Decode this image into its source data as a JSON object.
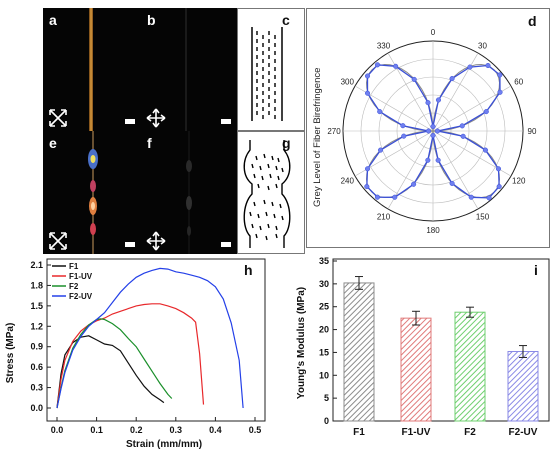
{
  "panels": {
    "a": "a",
    "b": "b",
    "c": "c",
    "d": "d",
    "e": "e",
    "f": "f",
    "g": "g",
    "h": "h",
    "i": "i"
  },
  "polar": {
    "ylabel": "Grey Level of Fiber Birefringence",
    "angle_labels": [
      "0",
      "30",
      "60",
      "90",
      "120",
      "150",
      "180",
      "210",
      "240",
      "270",
      "300",
      "330"
    ],
    "series_color": "#3a4fd6",
    "fit_color": "#8a8a8a"
  },
  "stress_strain": {
    "xlabel": "Strain (mm/mm)",
    "ylabel": "Stress (MPa)",
    "xticks": [
      "0.0",
      "0.1",
      "0.2",
      "0.3",
      "0.4",
      "0.5"
    ],
    "yticks": [
      "0.0",
      "0.3",
      "0.6",
      "0.9",
      "1.2",
      "1.5",
      "1.8",
      "2.1"
    ],
    "legend": [
      {
        "label": "F1",
        "color": "#111111"
      },
      {
        "label": "F1-UV",
        "color": "#e8282b"
      },
      {
        "label": "F2",
        "color": "#1a8f2a"
      },
      {
        "label": "F2-UV",
        "color": "#2440e8"
      }
    ]
  },
  "modulus": {
    "ylabel": "Young's Modulus (MPa)",
    "yticks": [
      "0",
      "5",
      "10",
      "15",
      "20",
      "25",
      "30",
      "35"
    ],
    "bars": [
      {
        "label": "F1",
        "color": "#8c8c8c"
      },
      {
        "label": "F1-UV",
        "color": "#e07a7a"
      },
      {
        "label": "F2",
        "color": "#6fcf6f"
      },
      {
        "label": "F2-UV",
        "color": "#8a8ae6"
      }
    ]
  },
  "chart_data": [
    {
      "type": "line",
      "chart": "polar",
      "angles": [
        0,
        10,
        20,
        30,
        40,
        50,
        60,
        70,
        80,
        90,
        100,
        110,
        120,
        130,
        140,
        150,
        160,
        170,
        180,
        190,
        200,
        210,
        220,
        230,
        240,
        250,
        260,
        270,
        280,
        290,
        300,
        310,
        320,
        330,
        340,
        350
      ],
      "values": [
        0.05,
        0.35,
        0.62,
        0.82,
        0.95,
        0.97,
        0.86,
        0.63,
        0.33,
        0.05,
        0.34,
        0.62,
        0.84,
        0.96,
        0.97,
        0.85,
        0.62,
        0.33,
        0.05,
        0.33,
        0.63,
        0.85,
        0.96,
        0.96,
        0.84,
        0.62,
        0.33,
        0.05,
        0.34,
        0.63,
        0.84,
        0.95,
        0.96,
        0.83,
        0.61,
        0.32
      ]
    },
    {
      "type": "line",
      "chart": "stress-strain",
      "xlim": [
        0,
        0.5
      ],
      "ylim": [
        0,
        2.1
      ],
      "series": [
        {
          "name": "F1",
          "x": [
            0,
            0.01,
            0.02,
            0.04,
            0.06,
            0.08,
            0.1,
            0.12,
            0.14,
            0.16,
            0.18,
            0.2,
            0.22,
            0.24,
            0.26,
            0.27
          ],
          "y": [
            0,
            0.5,
            0.78,
            0.96,
            1.04,
            1.06,
            1.0,
            0.94,
            0.92,
            0.84,
            0.66,
            0.48,
            0.32,
            0.2,
            0.12,
            0.08
          ]
        },
        {
          "name": "F1-UV",
          "x": [
            0,
            0.01,
            0.02,
            0.04,
            0.06,
            0.08,
            0.1,
            0.12,
            0.14,
            0.16,
            0.18,
            0.2,
            0.22,
            0.24,
            0.26,
            0.28,
            0.3,
            0.32,
            0.34,
            0.35,
            0.36,
            0.37
          ],
          "y": [
            0,
            0.42,
            0.7,
            0.98,
            1.13,
            1.22,
            1.28,
            1.32,
            1.38,
            1.42,
            1.46,
            1.5,
            1.52,
            1.53,
            1.53,
            1.5,
            1.46,
            1.4,
            1.32,
            1.26,
            0.8,
            0.05
          ]
        },
        {
          "name": "F2",
          "x": [
            0,
            0.01,
            0.02,
            0.04,
            0.06,
            0.08,
            0.1,
            0.11,
            0.12,
            0.14,
            0.16,
            0.18,
            0.2,
            0.22,
            0.24,
            0.26,
            0.28,
            0.29
          ],
          "y": [
            0,
            0.3,
            0.55,
            0.88,
            1.08,
            1.22,
            1.3,
            1.31,
            1.3,
            1.24,
            1.15,
            1.02,
            0.9,
            0.72,
            0.54,
            0.36,
            0.2,
            0.14
          ]
        },
        {
          "name": "F2-UV",
          "x": [
            0,
            0.01,
            0.02,
            0.04,
            0.06,
            0.08,
            0.1,
            0.12,
            0.14,
            0.16,
            0.18,
            0.2,
            0.22,
            0.24,
            0.26,
            0.28,
            0.3,
            0.32,
            0.34,
            0.36,
            0.38,
            0.4,
            0.42,
            0.44,
            0.46,
            0.47
          ],
          "y": [
            0,
            0.28,
            0.52,
            0.85,
            1.05,
            1.2,
            1.3,
            1.4,
            1.55,
            1.7,
            1.82,
            1.92,
            1.98,
            2.02,
            2.05,
            2.04,
            2.0,
            1.98,
            1.95,
            1.92,
            1.87,
            1.78,
            1.6,
            1.25,
            0.7,
            0.0
          ]
        }
      ]
    },
    {
      "type": "bar",
      "chart": "modulus",
      "categories": [
        "F1",
        "F1-UV",
        "F2",
        "F2-UV"
      ],
      "values": [
        30.2,
        22.5,
        23.8,
        15.2
      ],
      "errors": [
        1.4,
        1.5,
        1.1,
        1.3
      ],
      "ylim": [
        0,
        35
      ]
    }
  ]
}
